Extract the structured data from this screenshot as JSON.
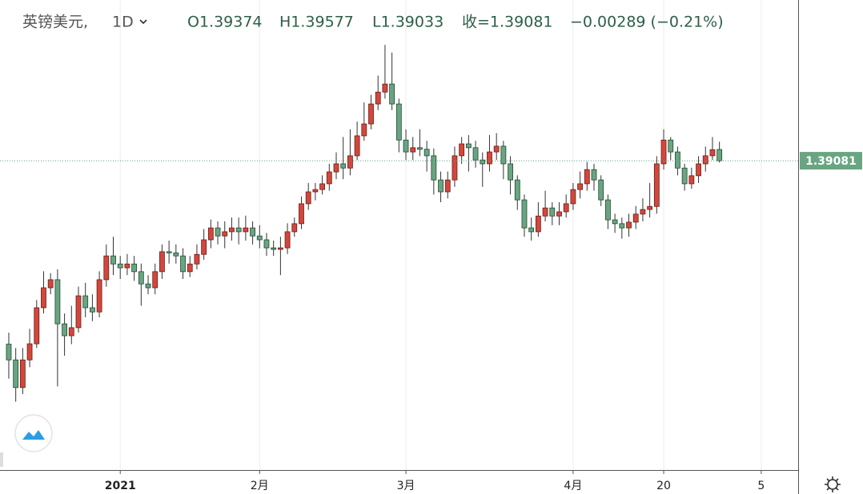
{
  "chart_data": {
    "type": "candlestick",
    "symbol": "英镑美元,",
    "interval": "1D",
    "legend": [
      "O1.39374",
      "H1.39577",
      "L1.39033",
      "收=1.39081",
      "−0.00289 (−0.21%)"
    ],
    "up_color": "#d2473c",
    "down_color": "#6aa582",
    "ylim": [
      1.3102,
      1.4327
    ],
    "xlim": [
      -1.26,
      113.3
    ],
    "xticks": [
      {
        "value": 16,
        "label": "2021"
      },
      {
        "value": 36,
        "label": "2月"
      },
      {
        "value": 57,
        "label": "3月"
      },
      {
        "value": 81,
        "label": "4月"
      },
      {
        "value": 94,
        "label": "20"
      },
      {
        "value": 108,
        "label": "5"
      }
    ],
    "grid": true,
    "open": [
      1.343,
      1.3389,
      1.3317,
      1.3389,
      1.3431,
      1.3525,
      1.3577,
      1.3598,
      1.3483,
      1.3452,
      1.3473,
      1.3556,
      1.3525,
      1.3514,
      1.3598,
      1.366,
      1.3639,
      1.3629,
      1.3639,
      1.3619,
      1.3587,
      1.3577,
      1.3619,
      1.3671,
      1.3668,
      1.366,
      1.3619,
      1.3639,
      1.3664,
      1.3702,
      1.3733,
      1.3712,
      1.3723,
      1.3733,
      1.3723,
      1.3733,
      1.3712,
      1.3702,
      1.3681,
      1.3677,
      1.3681,
      1.3723,
      1.3744,
      1.3796,
      1.3827,
      1.3833,
      1.3848,
      1.3879,
      1.39,
      1.3889,
      1.3921,
      1.3973,
      1.4004,
      1.4056,
      1.4087,
      1.4108,
      1.4056,
      1.3962,
      1.3931,
      1.3942,
      1.3938,
      1.3921,
      1.3858,
      1.3827,
      1.3858,
      1.3921,
      1.3952,
      1.3942,
      1.391,
      1.39,
      1.3931,
      1.3946,
      1.39,
      1.3858,
      1.3806,
      1.3733,
      1.3723,
      1.3764,
      1.3785,
      1.3764,
      1.3775,
      1.3796,
      1.3833,
      1.3848,
      1.3885,
      1.3858,
      1.3806,
      1.3754,
      1.3744,
      1.3733,
      1.3748,
      1.3769,
      1.3781,
      1.3789,
      1.39,
      1.3962,
      1.3931,
      1.3889,
      1.3848,
      1.3869,
      1.39,
      1.3921,
      1.39374
    ],
    "high": [
      1.346,
      1.342,
      1.342,
      1.347,
      1.3545,
      1.362,
      1.3615,
      1.3625,
      1.351,
      1.353,
      1.358,
      1.359,
      1.356,
      1.362,
      1.369,
      1.371,
      1.366,
      1.3665,
      1.366,
      1.364,
      1.361,
      1.364,
      1.369,
      1.37,
      1.369,
      1.368,
      1.366,
      1.369,
      1.373,
      1.3755,
      1.375,
      1.375,
      1.376,
      1.376,
      1.3765,
      1.375,
      1.374,
      1.372,
      1.37,
      1.371,
      1.3745,
      1.376,
      1.3815,
      1.385,
      1.385,
      1.387,
      1.39,
      1.393,
      1.397,
      1.399,
      1.401,
      1.406,
      1.408,
      1.413,
      1.421,
      1.419,
      1.407,
      1.399,
      1.397,
      1.399,
      1.396,
      1.394,
      1.388,
      1.388,
      1.3945,
      1.397,
      1.3975,
      1.396,
      1.393,
      1.3975,
      1.398,
      1.396,
      1.392,
      1.387,
      1.382,
      1.376,
      1.38,
      1.383,
      1.38,
      1.38,
      1.382,
      1.385,
      1.388,
      1.3905,
      1.39,
      1.387,
      1.382,
      1.377,
      1.376,
      1.377,
      1.379,
      1.381,
      1.385,
      1.392,
      1.399,
      1.397,
      1.3945,
      1.39,
      1.389,
      1.392,
      1.3945,
      1.397,
      1.39577
    ],
    "low": [
      1.334,
      1.328,
      1.33,
      1.337,
      1.342,
      1.351,
      1.356,
      1.332,
      1.34,
      1.343,
      1.346,
      1.35,
      1.349,
      1.35,
      1.358,
      1.361,
      1.36,
      1.361,
      1.3595,
      1.353,
      1.356,
      1.356,
      1.36,
      1.364,
      1.364,
      1.36,
      1.3605,
      1.3625,
      1.365,
      1.368,
      1.369,
      1.368,
      1.37,
      1.369,
      1.37,
      1.369,
      1.368,
      1.366,
      1.366,
      1.361,
      1.3665,
      1.371,
      1.373,
      1.378,
      1.3805,
      1.382,
      1.383,
      1.386,
      1.386,
      1.387,
      1.391,
      1.396,
      1.399,
      1.404,
      1.407,
      1.404,
      1.393,
      1.391,
      1.391,
      1.392,
      1.388,
      1.382,
      1.38,
      1.381,
      1.384,
      1.39,
      1.388,
      1.389,
      1.384,
      1.388,
      1.391,
      1.386,
      1.382,
      1.378,
      1.371,
      1.37,
      1.371,
      1.375,
      1.374,
      1.374,
      1.376,
      1.378,
      1.381,
      1.383,
      1.383,
      1.379,
      1.373,
      1.372,
      1.3705,
      1.371,
      1.373,
      1.375,
      1.376,
      1.377,
      1.3885,
      1.391,
      1.387,
      1.383,
      1.3835,
      1.385,
      1.388,
      1.391,
      1.39033
    ],
    "close": [
      1.3389,
      1.3317,
      1.3389,
      1.3431,
      1.3525,
      1.3577,
      1.3598,
      1.3483,
      1.3452,
      1.3473,
      1.3556,
      1.3525,
      1.3514,
      1.3598,
      1.366,
      1.3639,
      1.3629,
      1.3639,
      1.3619,
      1.3587,
      1.3577,
      1.3619,
      1.3671,
      1.3668,
      1.366,
      1.3619,
      1.3639,
      1.3664,
      1.3702,
      1.3733,
      1.3712,
      1.3723,
      1.3733,
      1.3723,
      1.3733,
      1.3712,
      1.3702,
      1.3681,
      1.3677,
      1.3681,
      1.3723,
      1.3744,
      1.3796,
      1.3827,
      1.3833,
      1.3848,
      1.3879,
      1.39,
      1.3889,
      1.3921,
      1.3973,
      1.4004,
      1.4056,
      1.4087,
      1.4108,
      1.4056,
      1.3962,
      1.3931,
      1.3942,
      1.3938,
      1.3921,
      1.3858,
      1.3827,
      1.3858,
      1.3921,
      1.3952,
      1.3942,
      1.391,
      1.39,
      1.3931,
      1.3946,
      1.39,
      1.3858,
      1.3806,
      1.3733,
      1.3723,
      1.3764,
      1.3785,
      1.3764,
      1.3775,
      1.3796,
      1.3833,
      1.3848,
      1.3885,
      1.3858,
      1.3806,
      1.3754,
      1.3744,
      1.3733,
      1.3748,
      1.3769,
      1.3781,
      1.3789,
      1.39,
      1.3962,
      1.3931,
      1.3889,
      1.3848,
      1.3869,
      1.39,
      1.3921,
      1.3937,
      1.39081
    ]
  }
}
